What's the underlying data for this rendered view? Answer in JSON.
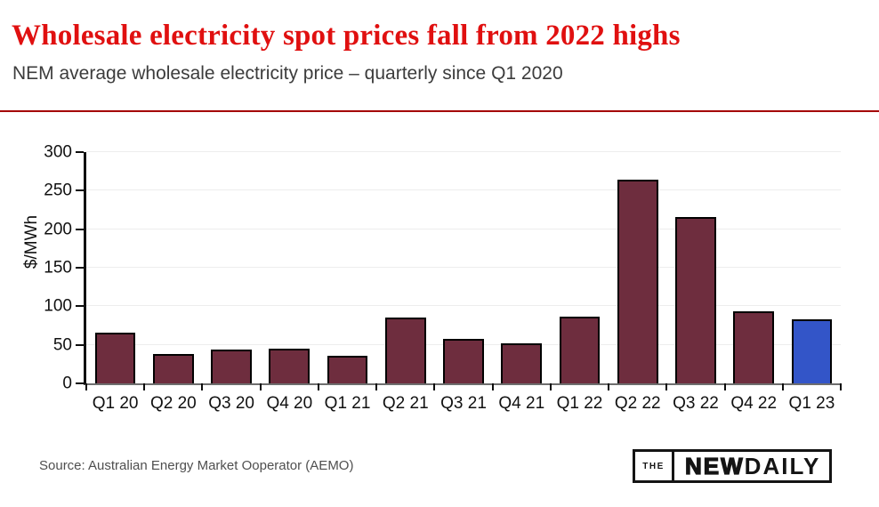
{
  "header": {
    "title": "Wholesale electricity spot prices fall from 2022 highs",
    "subtitle": "NEM average wholesale electricity price – quarterly since Q1 2020"
  },
  "chart_data": {
    "type": "bar",
    "title": "",
    "xlabel": "",
    "ylabel": "$/MWh",
    "categories": [
      "Q1 20",
      "Q2 20",
      "Q3 20",
      "Q4 20",
      "Q1 21",
      "Q2 21",
      "Q3 21",
      "Q4 21",
      "Q1 22",
      "Q2 22",
      "Q3 22",
      "Q4 22",
      "Q1 23"
    ],
    "values": [
      66,
      38,
      44,
      45,
      36,
      85,
      58,
      52,
      87,
      264,
      216,
      93,
      83
    ],
    "ylim": [
      0,
      300
    ],
    "yticks": [
      0,
      50,
      100,
      150,
      200,
      250,
      300
    ],
    "grid": true,
    "legend": "none",
    "bar_color": "#6E2D3E",
    "highlight_index": 12,
    "highlight_color": "#3355C8",
    "bar_border_color": "#000000"
  },
  "footer": {
    "source": "Source: Australian Energy Market Ooperator (AEMO)",
    "logo": {
      "the": "THE",
      "new": "NEW",
      "daily": "DAILY"
    }
  },
  "colors": {
    "title": "#E01010",
    "divider": "#A40000",
    "gridline": "#EDEDED"
  }
}
